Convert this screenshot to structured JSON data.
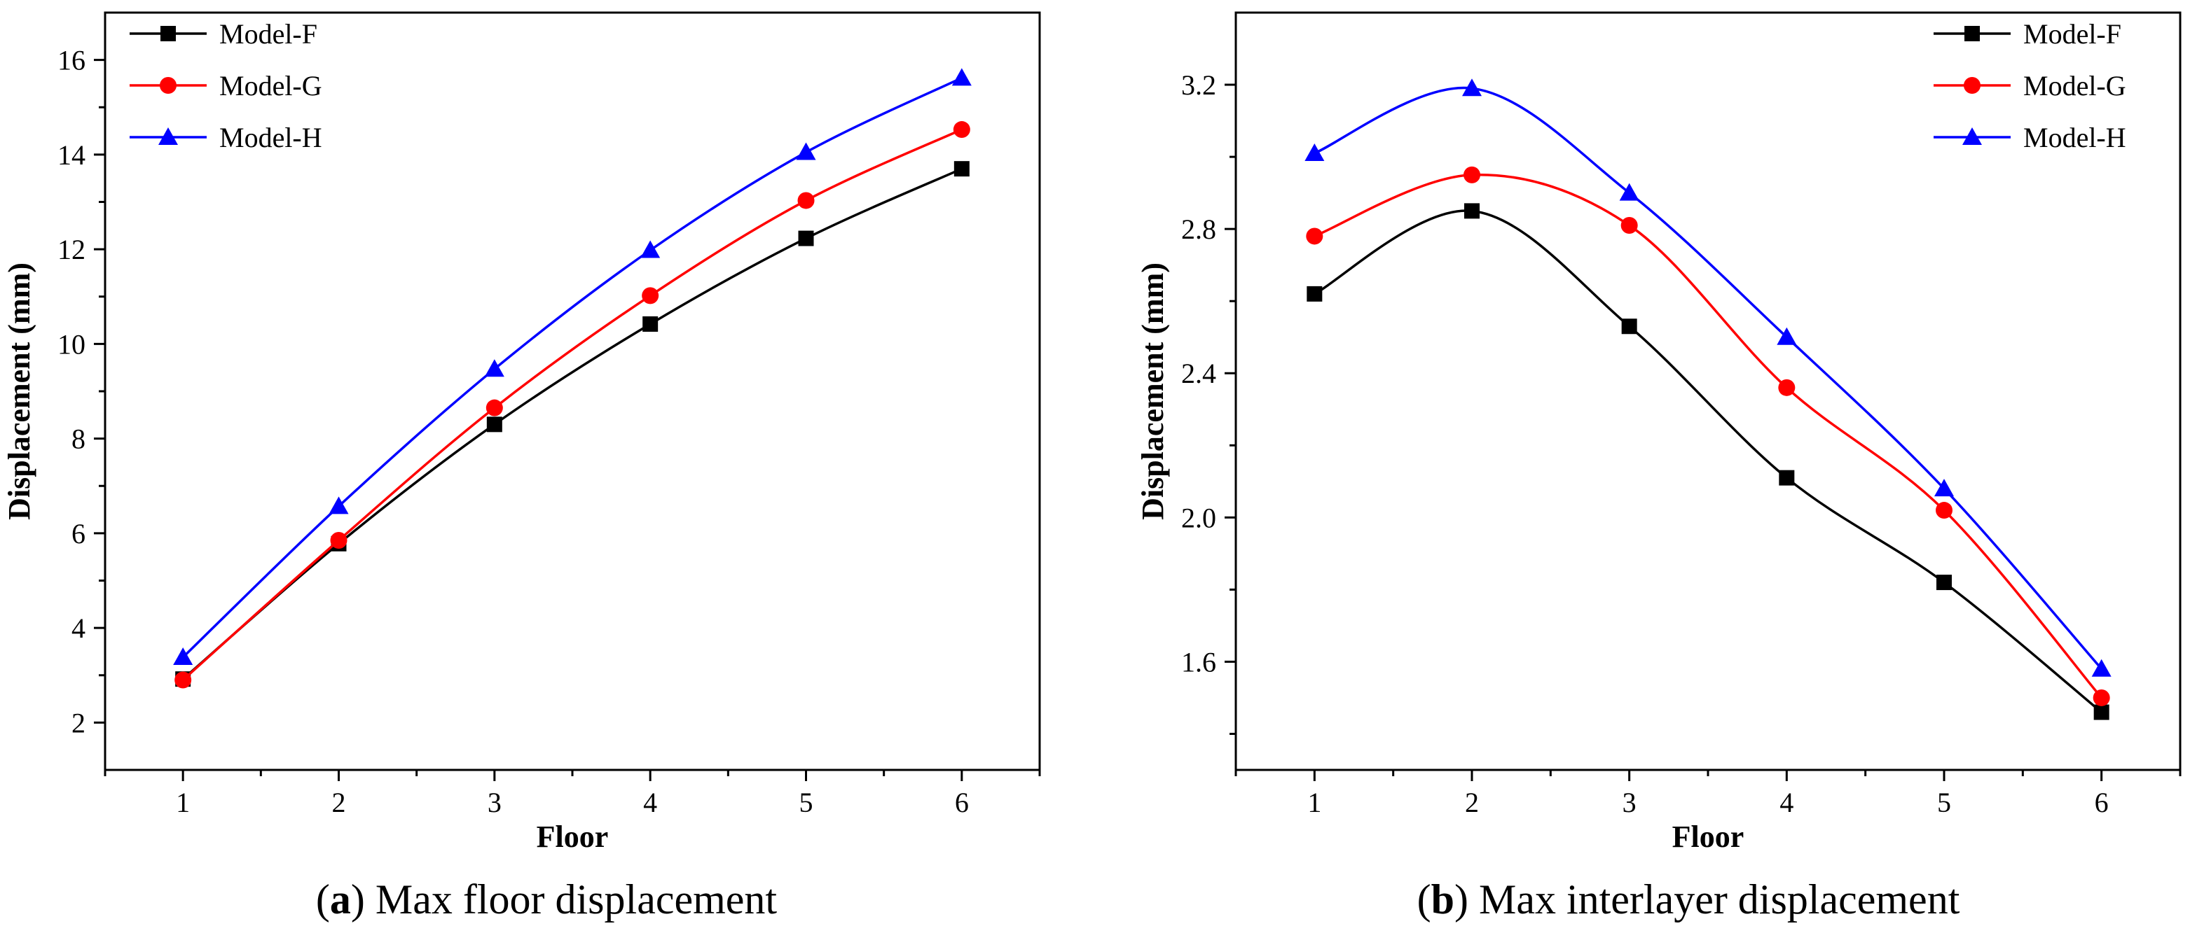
{
  "chart_data": [
    {
      "type": "line",
      "panel_letter": "a",
      "caption": "Max floor displacement",
      "xlabel": "Floor",
      "ylabel": "Displacement (mm)",
      "x": [
        1,
        2,
        3,
        4,
        5,
        6
      ],
      "xlim": [
        0.5,
        6.5
      ],
      "ylim": [
        1.0,
        17.0
      ],
      "yticks": [
        2,
        4,
        6,
        8,
        10,
        12,
        14,
        16
      ],
      "legend_position": "top-left",
      "series": [
        {
          "name": "Model-F",
          "color": "#000000",
          "marker": "square",
          "values": [
            2.92,
            5.78,
            8.3,
            10.42,
            12.23,
            13.7
          ]
        },
        {
          "name": "Model-G",
          "color": "#ff0000",
          "marker": "circle",
          "values": [
            2.9,
            5.85,
            8.65,
            11.02,
            13.03,
            14.53
          ]
        },
        {
          "name": "Model-H",
          "color": "#0000ff",
          "marker": "triangle",
          "values": [
            3.38,
            6.57,
            9.47,
            11.98,
            14.05,
            15.62
          ]
        }
      ]
    },
    {
      "type": "line",
      "panel_letter": "b",
      "caption": "Max interlayer displacement",
      "xlabel": "Floor",
      "ylabel": "Displacement (mm)",
      "x": [
        1,
        2,
        3,
        4,
        5,
        6
      ],
      "xlim": [
        0.5,
        6.5
      ],
      "ylim": [
        1.3,
        3.4
      ],
      "yticks": [
        1.6,
        2.0,
        2.4,
        2.8,
        3.2
      ],
      "legend_position": "top-right",
      "series": [
        {
          "name": "Model-F",
          "color": "#000000",
          "marker": "square",
          "values": [
            2.62,
            2.85,
            2.53,
            2.11,
            1.82,
            1.46
          ]
        },
        {
          "name": "Model-G",
          "color": "#ff0000",
          "marker": "circle",
          "values": [
            2.78,
            2.95,
            2.81,
            2.36,
            2.02,
            1.5
          ]
        },
        {
          "name": "Model-H",
          "color": "#0000ff",
          "marker": "triangle",
          "values": [
            3.01,
            3.19,
            2.9,
            2.5,
            2.08,
            1.58
          ]
        }
      ]
    }
  ]
}
